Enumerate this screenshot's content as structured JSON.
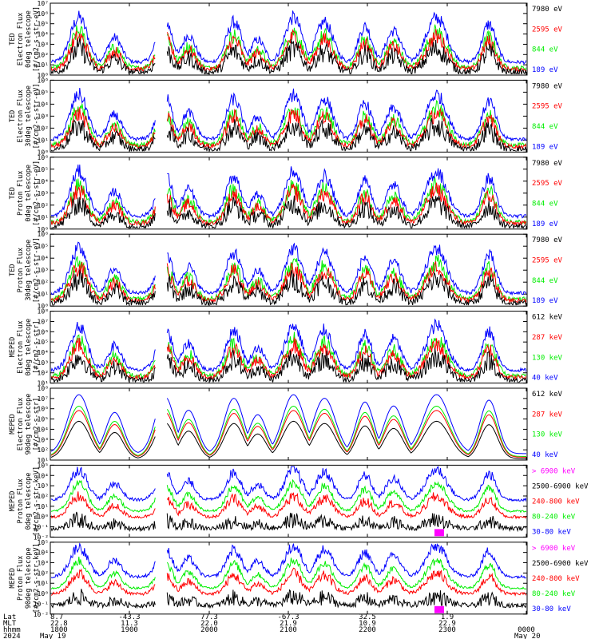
{
  "chart_data": {
    "type": "line",
    "x_range": [
      "1800",
      "0000"
    ],
    "x_ticks": {
      "Lat": [
        "8.7",
        "-43.3",
        "77.3",
        "-67.3",
        "32.5",
        "1.9",
        ""
      ],
      "MLT": [
        "22.8",
        "11.3",
        "22.0",
        "21.9",
        "10.9",
        "22.9",
        ""
      ],
      "hhmm": [
        "1800",
        "1900",
        "2000",
        "2100",
        "2200",
        "2300",
        "0000"
      ],
      "date": [
        "2024",
        "May 19",
        "May 20"
      ]
    },
    "row_labels": [
      "Lat",
      "MLT",
      "hhmm",
      "2024"
    ],
    "colors": {
      "blue": "#0000ff",
      "red": "#ff0000",
      "green": "#00ee00",
      "black": "#000000",
      "magenta": "#ff00ff"
    },
    "panels": [
      {
        "ylabel": [
          "TED",
          "Electron Flux",
          "0deg telescope",
          "[#/cm2-s-str-eV]"
        ],
        "ylog": [
          0,
          7
        ],
        "ytick_labels": [
          "10⁰",
          "10¹",
          "10²",
          "10³",
          "10⁴",
          "10⁵",
          "10⁶",
          "10⁷"
        ],
        "legend": [
          "7980 eV",
          "2595 eV",
          "844 eV",
          "189 eV"
        ],
        "legend_colors": [
          "black",
          "red",
          "green",
          "blue"
        ]
      },
      {
        "ylabel": [
          "TED",
          "Electron Flux",
          "30deg telescope",
          "[#/cm2-s-str-eV]"
        ],
        "ylog": [
          0,
          6
        ],
        "ytick_labels": [
          "10⁰",
          "10¹",
          "10²",
          "10³",
          "10⁴",
          "10⁵",
          "10⁶"
        ],
        "legend": [
          "7980 eV",
          "2595 eV",
          "844 eV",
          "189 eV"
        ],
        "legend_colors": [
          "black",
          "red",
          "green",
          "blue"
        ]
      },
      {
        "ylabel": [
          "TED",
          "Proton Flux",
          "0deg telescope",
          "[#/cm2-s-str-eV]"
        ],
        "ylog": [
          0,
          6
        ],
        "ytick_labels": [
          "10⁰",
          "10¹",
          "10²",
          "10³",
          "10⁴",
          "10⁵",
          "10⁶"
        ],
        "legend": [
          "7980 eV",
          "2595 eV",
          "844 eV",
          "189 eV"
        ],
        "legend_colors": [
          "black",
          "red",
          "green",
          "blue"
        ]
      },
      {
        "ylabel": [
          "TED",
          "Proton Flux",
          "30deg telescope",
          "[#/cm2-s-str-eV]"
        ],
        "ylog": [
          0,
          6
        ],
        "ytick_labels": [
          "10⁰",
          "10¹",
          "10²",
          "10³",
          "10⁴",
          "10⁵",
          "10⁶"
        ],
        "legend": [
          "7980 eV",
          "2595 eV",
          "844 eV",
          "189 eV"
        ],
        "legend_colors": [
          "black",
          "red",
          "green",
          "blue"
        ]
      },
      {
        "ylabel": [
          "MEPED",
          "Electron Flux",
          "0deg telescope",
          "[#/cm2-s-str]"
        ],
        "ylog": [
          1,
          8
        ],
        "ytick_labels": [
          "10¹",
          "10²",
          "10³",
          "10⁴",
          "10⁵",
          "10⁶",
          "10⁷",
          "10⁸"
        ],
        "legend": [
          "612 keV",
          "287 keV",
          "130 keV",
          "40 keV"
        ],
        "legend_colors": [
          "black",
          "red",
          "green",
          "blue"
        ]
      },
      {
        "ylabel": [
          "MEPED",
          "Electron Flux",
          "90deg telescope",
          "[#/cm2-s-str]"
        ],
        "ylog": [
          1,
          8
        ],
        "ytick_labels": [
          "10¹",
          "10²",
          "10³",
          "10⁴",
          "10⁵",
          "10⁶",
          "10⁷",
          "10⁸"
        ],
        "legend": [
          "612 keV",
          "287 keV",
          "130 keV",
          "40 keV"
        ],
        "legend_colors": [
          "black",
          "red",
          "green",
          "blue"
        ]
      },
      {
        "ylabel": [
          "MEPED",
          "Proton Flux",
          "0deg telescope",
          "[#/cm2-s-str-keV]"
        ],
        "ylog": [
          -2,
          5
        ],
        "ytick_labels": [
          "10⁻²",
          "10⁻¹",
          "10⁰",
          "10¹",
          "10²",
          "10³",
          "10⁴",
          "10⁵"
        ],
        "legend": [
          "> 6900 keV",
          "2500-6900 keV",
          "240-800 keV",
          "80-240 keV",
          "30-80 keV"
        ],
        "legend_colors": [
          "magenta",
          "black",
          "red",
          "green",
          "blue"
        ]
      },
      {
        "ylabel": [
          "MEPED",
          "Proton Flux",
          "90deg telescope",
          "[#/cm2-s-str-keV]"
        ],
        "ylog": [
          -2,
          5
        ],
        "ytick_labels": [
          "10⁻²",
          "10⁻¹",
          "10⁰",
          "10¹",
          "10²",
          "10³",
          "10⁴",
          "10⁵"
        ],
        "legend": [
          "> 6900 keV",
          "2500-6900 keV",
          "240-800 keV",
          "80-240 keV",
          "30-80 keV"
        ],
        "legend_colors": [
          "magenta",
          "black",
          "red",
          "green",
          "blue"
        ]
      }
    ],
    "passes": [
      {
        "t": 0.06,
        "w": 0.025,
        "peak": 1.0
      },
      {
        "t": 0.135,
        "w": 0.02,
        "peak": 0.55
      },
      {
        "t": 0.24,
        "w": 0.022,
        "peak": 0.95
      },
      {
        "t": 0.29,
        "w": 0.02,
        "peak": 0.6
      },
      {
        "t": 0.385,
        "w": 0.022,
        "peak": 0.9
      },
      {
        "t": 0.435,
        "w": 0.02,
        "peak": 0.5
      },
      {
        "t": 0.51,
        "w": 0.025,
        "peak": 1.0
      },
      {
        "t": 0.575,
        "w": 0.025,
        "peak": 0.9
      },
      {
        "t": 0.66,
        "w": 0.02,
        "peak": 0.8
      },
      {
        "t": 0.72,
        "w": 0.022,
        "peak": 0.7
      },
      {
        "t": 0.81,
        "w": 0.03,
        "peak": 1.0
      },
      {
        "t": 0.92,
        "w": 0.02,
        "peak": 0.85
      }
    ],
    "gap": [
      0.22,
      0.245
    ]
  }
}
